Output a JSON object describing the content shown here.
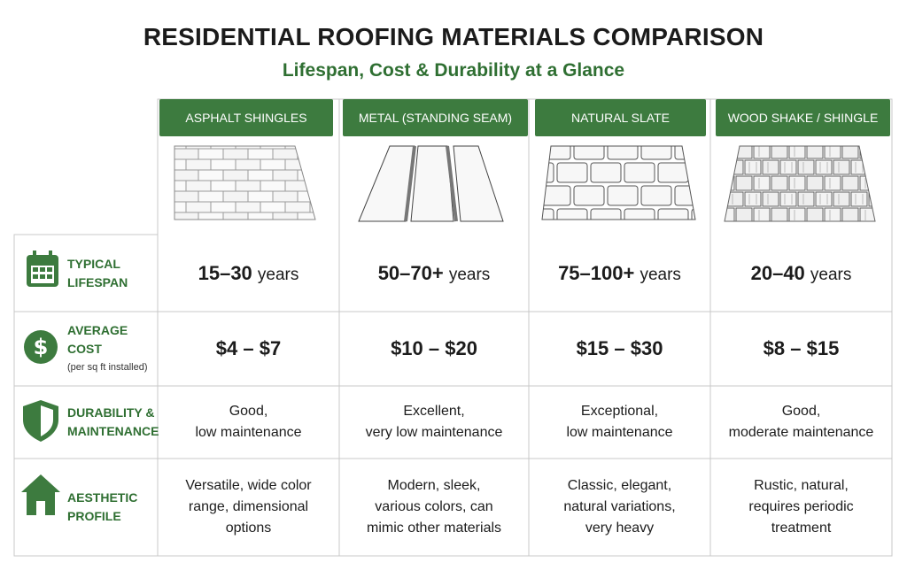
{
  "title": "RESIDENTIAL ROOFING MATERIALS COMPARISON",
  "subtitle": "Lifespan, Cost & Durability at a Glance",
  "columns": [
    "ASPHALT SHINGLES",
    "METAL (STANDING SEAM)",
    "NATURAL SLATE",
    "WOOD SHAKE / SHINGLE"
  ],
  "rows": [
    {
      "label": [
        "TYPICAL",
        "LIFESPAN"
      ],
      "cells": [
        {
          "value": "15–30",
          "unit": "years"
        },
        {
          "value": "50–70+",
          "unit": "years"
        },
        {
          "value": "75–100+",
          "unit": "years"
        },
        {
          "value": "20–40",
          "unit": "years"
        }
      ]
    },
    {
      "label": [
        "AVERAGE COST"
      ],
      "note": "(per sq ft installed)",
      "cells": [
        "$4 – $7",
        "$10 – $20",
        "$15 – $30",
        "$8 – $15"
      ]
    },
    {
      "label": [
        "DURABILITY &",
        "MAINTENANCE"
      ],
      "cells": [
        [
          "Good,",
          "low maintenance"
        ],
        [
          "Excellent,",
          "very low maintenance"
        ],
        [
          "Exceptional,",
          "low maintenance"
        ],
        [
          "Good,",
          "moderate maintenance"
        ]
      ]
    },
    {
      "label": [
        "AESTHETIC",
        "PROFILE"
      ],
      "cells": [
        [
          "Versatile, wide color",
          "range, dimensional",
          "options"
        ],
        [
          "Modern, sleek,",
          "various colors, can",
          "mimic other materials"
        ],
        [
          "Classic, elegant,",
          "natural variations,",
          "very heavy"
        ],
        [
          "Rustic, natural,",
          "requires periodic",
          "treatment"
        ]
      ]
    }
  ]
}
